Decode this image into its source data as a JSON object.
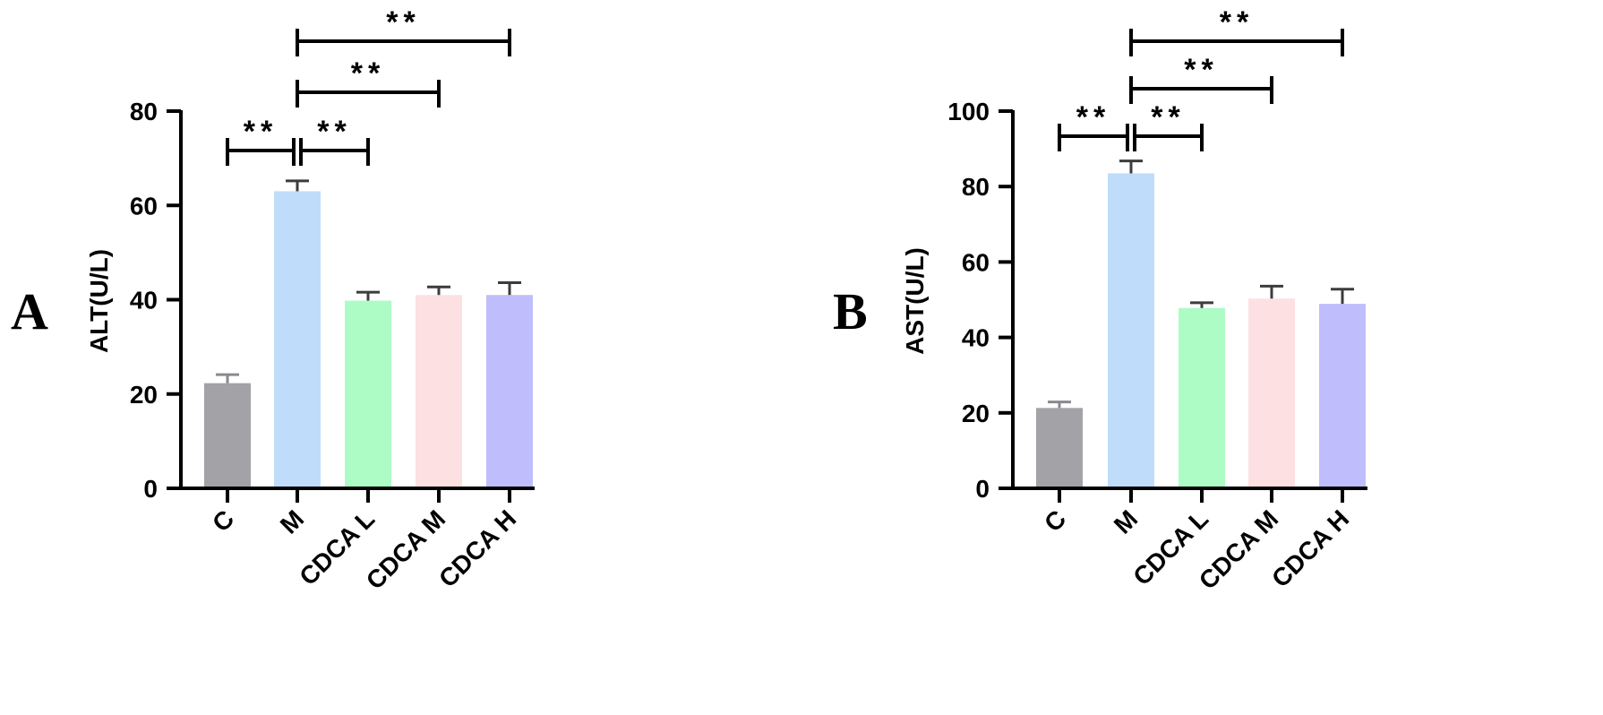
{
  "chart_data": [
    {
      "type": "bar",
      "panel_label": "A",
      "ylabel": "ALT(U/L)",
      "xlabel": "",
      "categories": [
        "C",
        "M",
        "CDCA L",
        "CDCA M",
        "CDCA H"
      ],
      "values": [
        22.3,
        63.0,
        39.8,
        41.0,
        41.0
      ],
      "errors": [
        1.8,
        2.2,
        1.8,
        1.7,
        2.6
      ],
      "colors": [
        "#a3a2a7",
        "#bfdcfa",
        "#adfcc5",
        "#fde0e2",
        "#c0bdfc"
      ],
      "error_colors": [
        "#8a898e",
        "#3c3c3c",
        "#3c3c3c",
        "#3c3c3c",
        "#3c3c3c"
      ],
      "ylim": [
        0,
        80
      ],
      "yticks": [
        0,
        20,
        40,
        60,
        80
      ],
      "significance": [
        {
          "from": "C",
          "to": "M",
          "label": "**",
          "level": 0
        },
        {
          "from": "M",
          "to": "CDCA L",
          "label": "**",
          "level": 0
        },
        {
          "from": "M",
          "to": "CDCA M",
          "label": "**",
          "level": 1
        },
        {
          "from": "M",
          "to": "CDCA H",
          "label": "**",
          "level": 2
        }
      ]
    },
    {
      "type": "bar",
      "panel_label": "B",
      "ylabel": "AST(U/L)",
      "xlabel": "",
      "categories": [
        "C",
        "M",
        "CDCA L",
        "CDCA M",
        "CDCA H"
      ],
      "values": [
        21.3,
        83.5,
        47.8,
        50.3,
        48.9
      ],
      "errors": [
        1.6,
        3.3,
        1.4,
        3.3,
        3.9
      ],
      "colors": [
        "#a3a2a7",
        "#bfdcfa",
        "#adfcc5",
        "#fde0e2",
        "#c0bdfc"
      ],
      "error_colors": [
        "#8a898e",
        "#3c3c3c",
        "#3c3c3c",
        "#3c3c3c",
        "#3c3c3c"
      ],
      "ylim": [
        0,
        100
      ],
      "yticks": [
        0,
        20,
        40,
        60,
        80,
        100
      ],
      "significance": [
        {
          "from": "C",
          "to": "M",
          "label": "**",
          "level": 0
        },
        {
          "from": "M",
          "to": "CDCA L",
          "label": "**",
          "level": 0
        },
        {
          "from": "M",
          "to": "CDCA M",
          "label": "**",
          "level": 1
        },
        {
          "from": "M",
          "to": "CDCA H",
          "label": "**",
          "level": 2
        }
      ]
    }
  ]
}
